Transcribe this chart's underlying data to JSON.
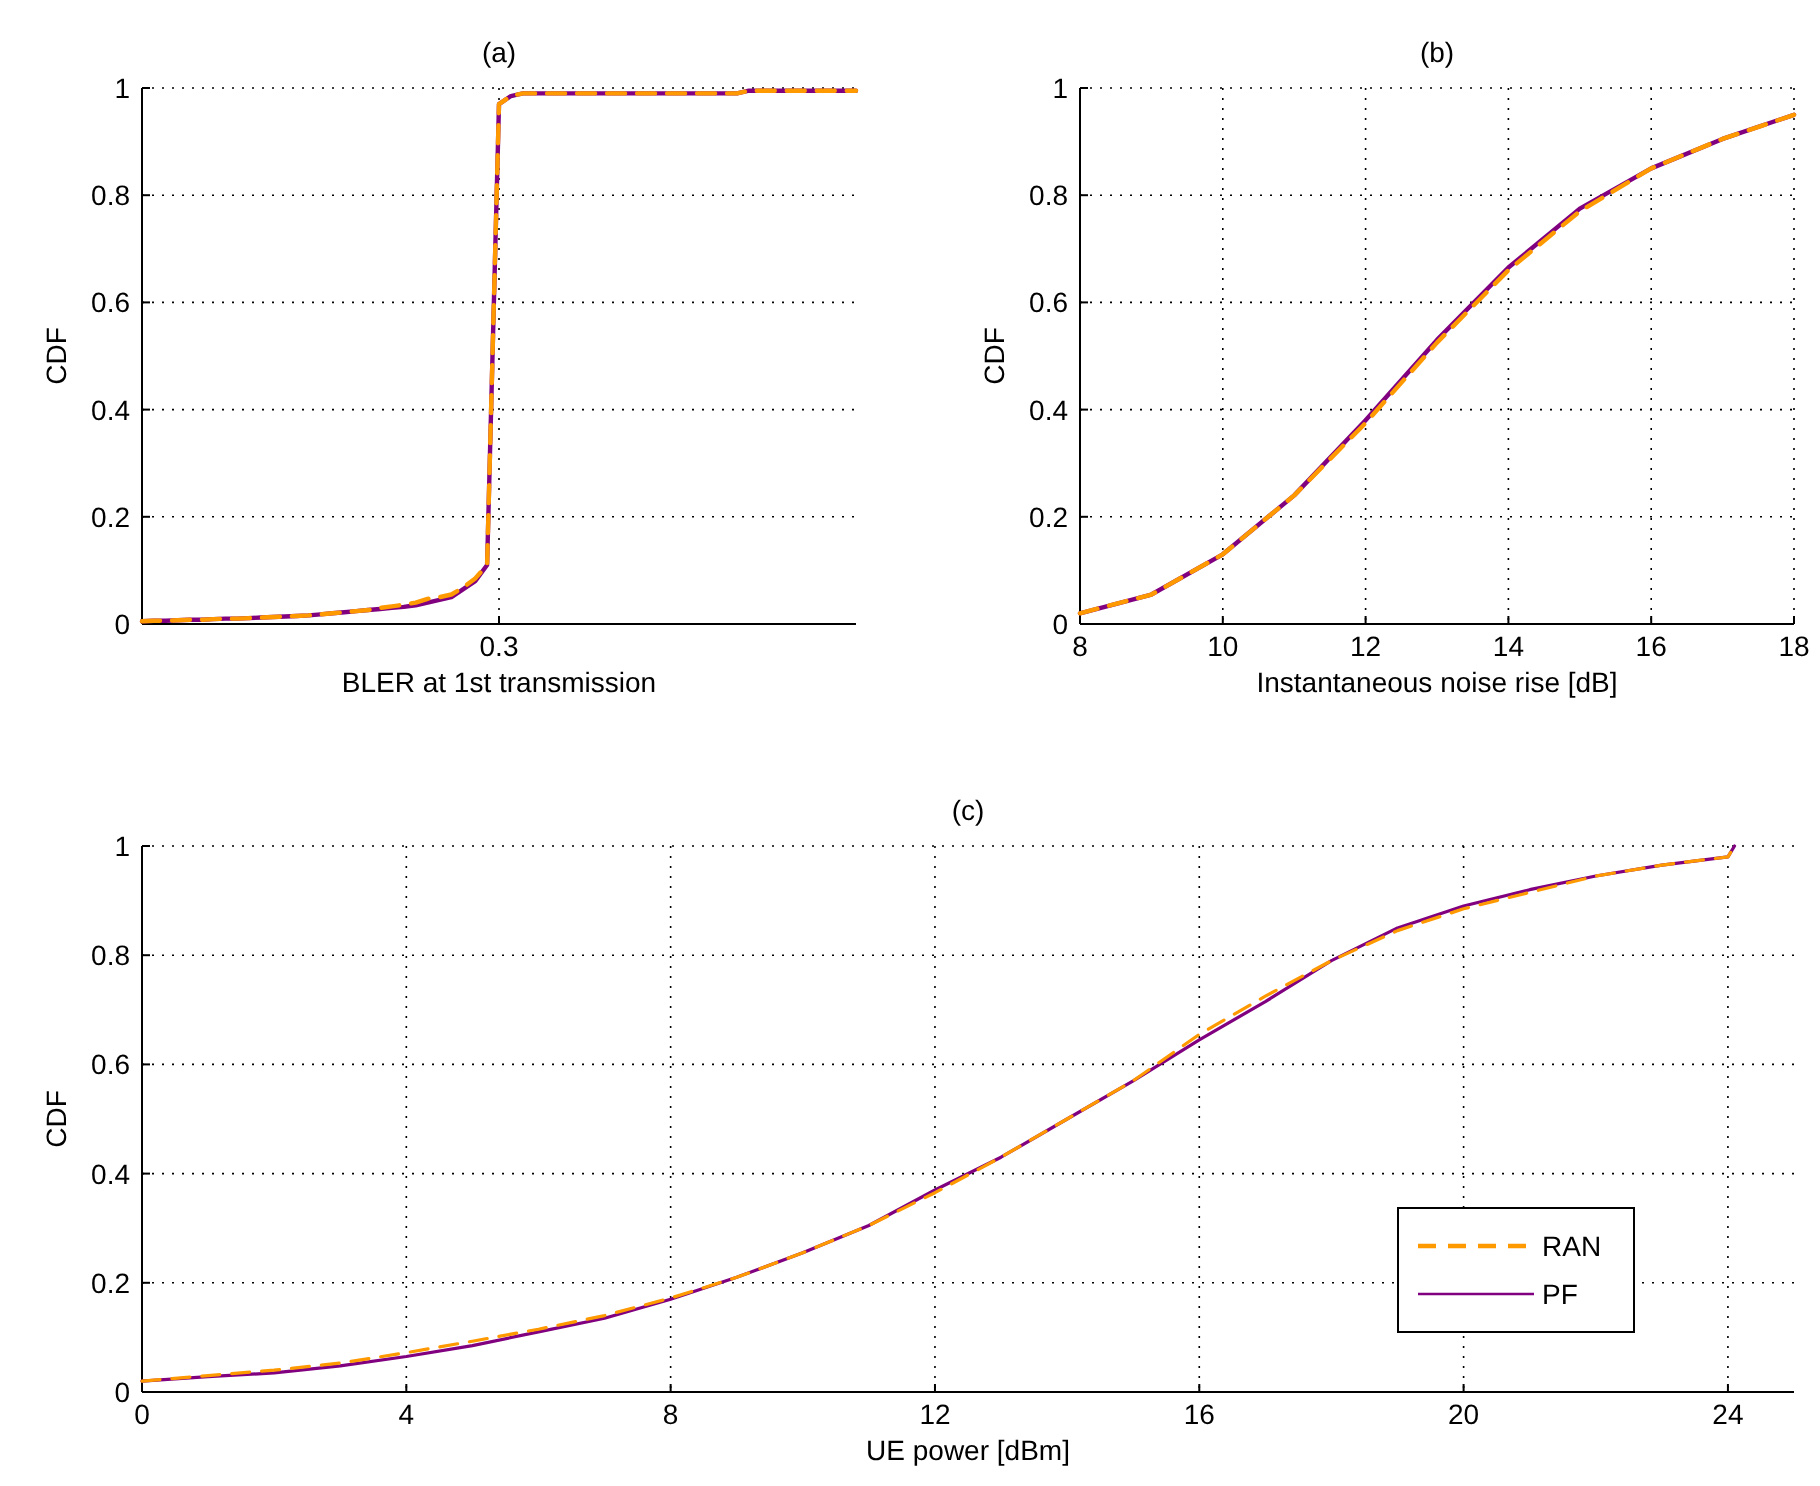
{
  "chart_data": [
    {
      "type": "line",
      "title": "(a)",
      "xlabel": "BLER at 1st transmission",
      "ylabel": "CDF",
      "ylim": [
        0,
        1
      ],
      "yticks": [
        0,
        0.2,
        0.4,
        0.6,
        0.8,
        1
      ],
      "grid": true,
      "legend": false,
      "categories": [
        null,
        null,
        null,
        null,
        null,
        null,
        null,
        null,
        null,
        null,
        null,
        null,
        null,
        null,
        null,
        null,
        null,
        null,
        null,
        null,
        null,
        null,
        null,
        null,
        null,
        null,
        null,
        null,
        null,
        null,
        "0.3",
        null,
        null,
        null,
        null,
        null,
        null,
        null,
        null,
        null,
        null,
        null,
        null,
        null,
        null,
        null,
        null,
        null,
        null,
        null,
        null,
        null,
        null,
        null,
        null,
        null,
        null,
        null,
        null,
        null,
        null
      ],
      "series": [
        {
          "color": "#ff9900",
          "line_style": "dashed",
          "values": [
            0.005,
            0.006,
            0.006,
            0.007,
            0.008,
            0.008,
            0.009,
            0.01,
            0.01,
            0.011,
            0.012,
            0.013,
            0.014,
            0.015,
            0.016,
            0.018,
            0.02,
            0.022,
            0.024,
            0.026,
            0.03,
            0.033,
            0.036,
            0.04,
            0.047,
            0.05,
            0.055,
            0.068,
            0.085,
            0.11,
            0.97,
            0.985,
            0.99,
            0.99,
            0.99,
            0.99,
            0.99,
            0.99,
            0.99,
            0.99,
            0.99,
            0.99,
            0.99,
            0.99,
            0.99,
            0.99,
            0.99,
            0.99,
            0.99,
            0.99,
            0.99,
            0.995,
            0.995,
            0.995,
            0.995,
            0.995,
            0.995,
            0.995,
            0.995,
            0.995,
            0.995
          ]
        },
        {
          "color": "#800080",
          "line_style": "solid",
          "values": [
            0.005,
            0.006,
            0.006,
            0.007,
            0.008,
            0.008,
            0.009,
            0.01,
            0.01,
            0.011,
            0.012,
            0.013,
            0.014,
            0.015,
            0.016,
            0.018,
            0.02,
            0.022,
            0.024,
            0.026,
            0.028,
            0.03,
            0.032,
            0.035,
            0.04,
            0.045,
            0.05,
            0.065,
            0.08,
            0.11,
            0.97,
            0.985,
            0.99,
            0.99,
            0.99,
            0.99,
            0.99,
            0.99,
            0.99,
            0.99,
            0.99,
            0.99,
            0.99,
            0.99,
            0.99,
            0.99,
            0.99,
            0.99,
            0.99,
            0.99,
            0.99,
            0.995,
            0.995,
            0.995,
            0.995,
            0.995,
            0.995,
            0.995,
            0.995,
            0.995,
            0.995
          ]
        }
      ]
    },
    {
      "type": "line",
      "title": "(b)",
      "xlabel": "Instantaneous noise rise [dB]",
      "ylabel": "CDF",
      "xlim": [
        8,
        18
      ],
      "xticks": [
        8,
        10,
        12,
        14,
        16,
        18
      ],
      "ylim": [
        0,
        1
      ],
      "yticks": [
        0,
        0.2,
        0.4,
        0.6,
        0.8,
        1
      ],
      "grid": true,
      "legend": false,
      "x": [
        8,
        9,
        10,
        11,
        12,
        13,
        14,
        15,
        16,
        17,
        18
      ],
      "series": [
        {
          "color": "#ff9900",
          "line_style": "dashed",
          "values": [
            0.02,
            0.055,
            0.13,
            0.24,
            0.375,
            0.525,
            0.66,
            0.77,
            0.85,
            0.905,
            0.95
          ]
        },
        {
          "color": "#800080",
          "line_style": "solid",
          "values": [
            0.02,
            0.055,
            0.13,
            0.24,
            0.38,
            0.53,
            0.665,
            0.775,
            0.85,
            0.905,
            0.95
          ]
        }
      ]
    },
    {
      "type": "line",
      "title": "(c)",
      "xlabel": "UE power [dBm]",
      "ylabel": "CDF",
      "xlim": [
        0,
        25
      ],
      "xticks": [
        0,
        4,
        8,
        12,
        16,
        20,
        24
      ],
      "ylim": [
        0,
        1
      ],
      "yticks": [
        0,
        0.2,
        0.4,
        0.6,
        0.8,
        1
      ],
      "grid": true,
      "legend": "bottom right",
      "x": [
        0,
        1,
        2,
        3,
        4,
        5,
        6,
        7,
        8,
        9,
        10,
        11,
        12,
        13,
        14,
        15,
        16,
        17,
        18,
        19,
        20,
        21,
        22,
        23,
        24,
        24.1
      ],
      "series": [
        {
          "name": "RAN",
          "color": "#ff9900",
          "line_style": "dashed",
          "values": [
            0.02,
            0.03,
            0.04,
            0.053,
            0.072,
            0.093,
            0.115,
            0.14,
            0.172,
            0.21,
            0.255,
            0.305,
            0.365,
            0.43,
            0.5,
            0.57,
            0.655,
            0.725,
            0.79,
            0.845,
            0.885,
            0.915,
            0.945,
            0.965,
            0.98,
            1.0
          ]
        },
        {
          "name": "PF",
          "color": "#800080",
          "line_style": "solid",
          "values": [
            0.02,
            0.028,
            0.035,
            0.048,
            0.065,
            0.085,
            0.11,
            0.135,
            0.17,
            0.21,
            0.255,
            0.305,
            0.37,
            0.43,
            0.5,
            0.57,
            0.645,
            0.715,
            0.79,
            0.85,
            0.89,
            0.92,
            0.945,
            0.965,
            0.98,
            1.0
          ]
        }
      ]
    }
  ]
}
